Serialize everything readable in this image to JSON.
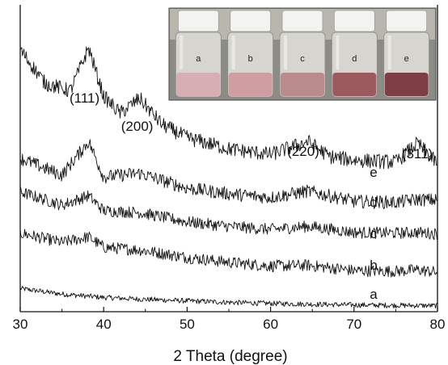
{
  "chart_data": {
    "type": "line",
    "title": "",
    "xlabel": "2 Theta (degree)",
    "ylabel": "",
    "xlim": [
      30,
      80
    ],
    "xticks": [
      "30",
      "40",
      "50",
      "60",
      "70",
      "80"
    ],
    "grid": false,
    "peak_labels": [
      {
        "text": "(111)",
        "x": 38.2
      },
      {
        "text": "(200)",
        "x": 44.3
      },
      {
        "text": "(220)",
        "x": 64.5
      },
      {
        "text": "(311)",
        "x": 77.6
      }
    ],
    "series": [
      {
        "name": "a",
        "x": [
          30,
          35,
          40,
          45,
          50,
          55,
          60,
          65,
          70,
          75,
          80
        ],
        "y": [
          0.62,
          0.47,
          0.38,
          0.33,
          0.29,
          0.25,
          0.22,
          0.2,
          0.18,
          0.17,
          0.16
        ]
      },
      {
        "name": "b",
        "x": [
          30,
          35,
          38.2,
          40,
          44.3,
          50,
          55,
          60,
          64.5,
          70,
          75,
          77.6,
          80
        ],
        "y": [
          2.1,
          1.85,
          2.0,
          1.72,
          1.65,
          1.45,
          1.32,
          1.22,
          1.24,
          1.1,
          1.08,
          1.12,
          1.05
        ]
      },
      {
        "name": "c",
        "x": [
          30,
          35,
          38.2,
          40,
          44.3,
          50,
          55,
          60,
          64.5,
          70,
          75,
          77.6,
          80
        ],
        "y": [
          3.2,
          2.85,
          3.1,
          2.7,
          2.65,
          2.4,
          2.28,
          2.2,
          2.28,
          2.12,
          2.1,
          2.12,
          2.08
        ]
      },
      {
        "name": "d",
        "x": [
          30,
          35,
          38.2,
          40,
          44.3,
          50,
          55,
          60,
          64.5,
          70,
          75,
          77.6,
          80
        ],
        "y": [
          4.1,
          3.65,
          4.55,
          3.6,
          3.7,
          3.3,
          3.15,
          3.05,
          3.22,
          2.95,
          2.92,
          3.0,
          2.98
        ]
      },
      {
        "name": "e",
        "x": [
          30,
          33,
          36,
          38.2,
          40,
          42,
          44.3,
          47,
          50,
          55,
          60,
          64.5,
          67,
          70,
          75,
          77.6,
          80
        ],
        "y": [
          7.0,
          6.1,
          5.9,
          7.05,
          5.75,
          5.3,
          5.7,
          5.0,
          4.65,
          4.35,
          4.2,
          4.55,
          4.15,
          4.05,
          4.0,
          4.5,
          3.95
        ]
      }
    ],
    "inset": {
      "vials": [
        {
          "label": "a",
          "color": "#d7aeb3"
        },
        {
          "label": "b",
          "color": "#cf9ea3"
        },
        {
          "label": "c",
          "color": "#b98b8c"
        },
        {
          "label": "d",
          "color": "#9c5a5e"
        },
        {
          "label": "e",
          "color": "#7d3f45"
        }
      ]
    }
  }
}
